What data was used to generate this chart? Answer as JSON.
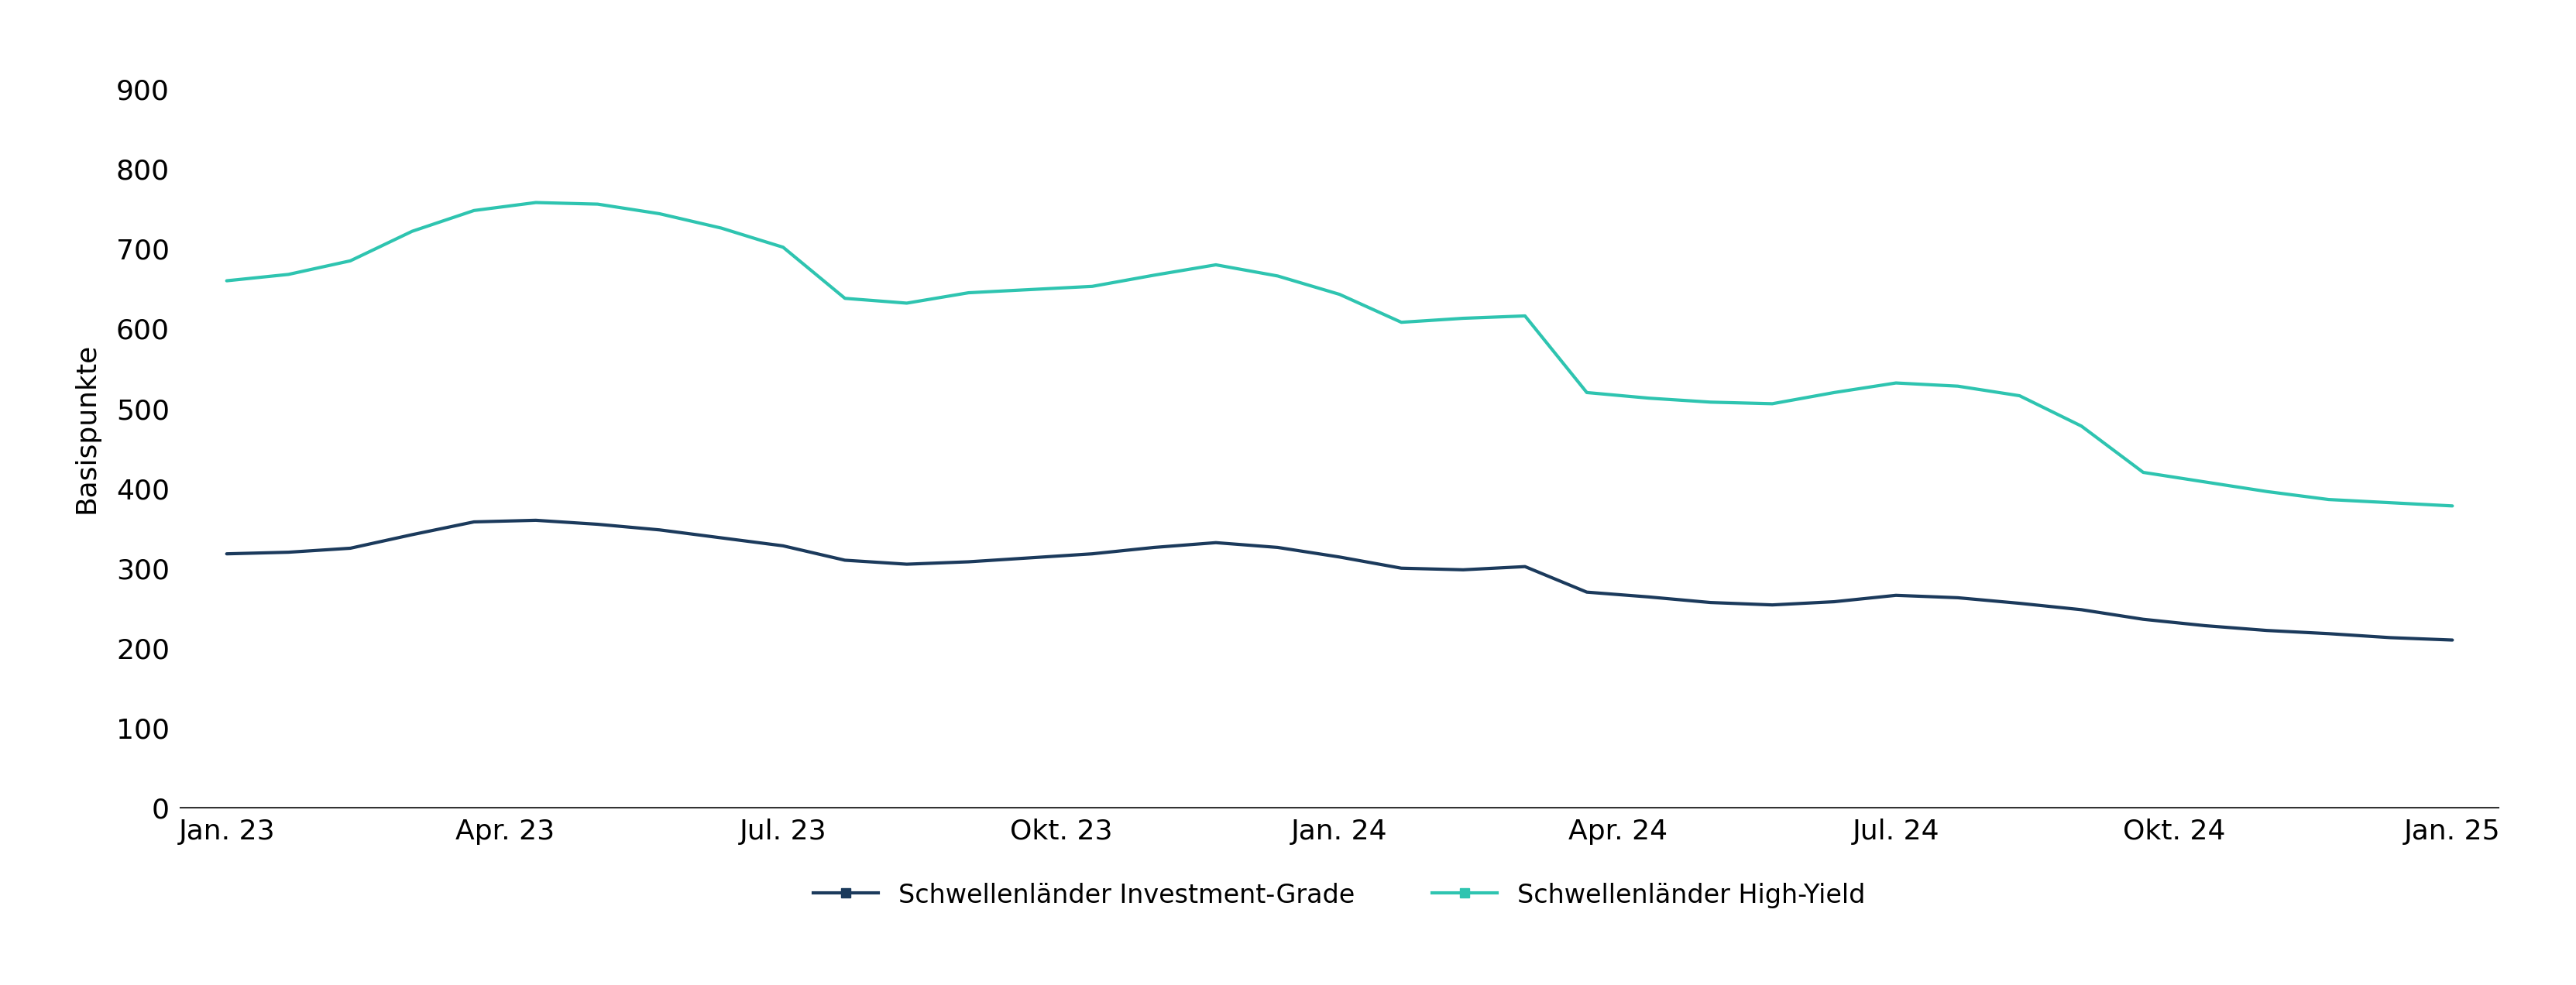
{
  "title": "",
  "ylabel": "Basispunkte",
  "background_color": "#ffffff",
  "yticks": [
    0,
    100,
    200,
    300,
    400,
    500,
    600,
    700,
    800,
    900
  ],
  "ylim": [
    0,
    950
  ],
  "xtick_labels": [
    "Jan. 23",
    "Apr. 23",
    "Jul. 23",
    "Okt. 23",
    "Jan. 24",
    "Apr. 24",
    "Jul. 24",
    "Okt. 24",
    "Jan. 25"
  ],
  "investment_grade_color": "#1b3a5c",
  "high_yield_color": "#2ec4b0",
  "investment_grade_label": "Schwellenländer Investment-Grade",
  "high_yield_label": "Schwellenländer High-Yield",
  "investment_grade": [
    318,
    320,
    325,
    342,
    358,
    360,
    355,
    348,
    338,
    328,
    310,
    305,
    308,
    313,
    318,
    326,
    332,
    326,
    314,
    300,
    298,
    302,
    270,
    264,
    257,
    254,
    258,
    266,
    263,
    256,
    248,
    236,
    228,
    222,
    218,
    213,
    210
  ],
  "high_yield": [
    660,
    668,
    685,
    722,
    748,
    758,
    756,
    744,
    726,
    702,
    638,
    632,
    645,
    649,
    653,
    667,
    680,
    666,
    643,
    608,
    613,
    616,
    520,
    513,
    508,
    506,
    520,
    532,
    528,
    516,
    478,
    420,
    408,
    396,
    386,
    382,
    378
  ],
  "line_width": 3.0,
  "font_size": 26,
  "legend_font_size": 24,
  "ylabel_font_size": 26,
  "tick_font_size": 26
}
